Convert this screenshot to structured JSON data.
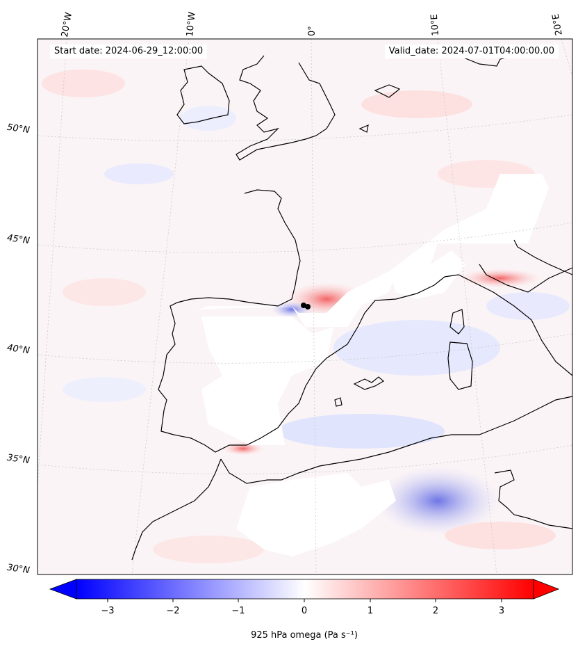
{
  "header": {
    "start_date": "Start date: 2024-06-29_12:00:00",
    "valid_date": "Valid_date: 2024-07-01T04:00:00.00"
  },
  "lon_labels": [
    "20°W",
    "10°W",
    "0°",
    "10°E",
    "20°E"
  ],
  "lat_labels": [
    "50°N",
    "45°N",
    "40°N",
    "35°N",
    "30°N"
  ],
  "colorbar": {
    "label": "925 hPa omega (Pa s⁻¹)",
    "ticks": [
      "−3",
      "−2",
      "−1",
      "0",
      "1",
      "2",
      "3"
    ],
    "min_color": "#0000ff",
    "mid_color": "#ffffff",
    "max_color": "#ff0000"
  },
  "colors": {
    "coastline": "#000000",
    "gridline": "#bbbbbb",
    "frame": "#000000"
  }
}
